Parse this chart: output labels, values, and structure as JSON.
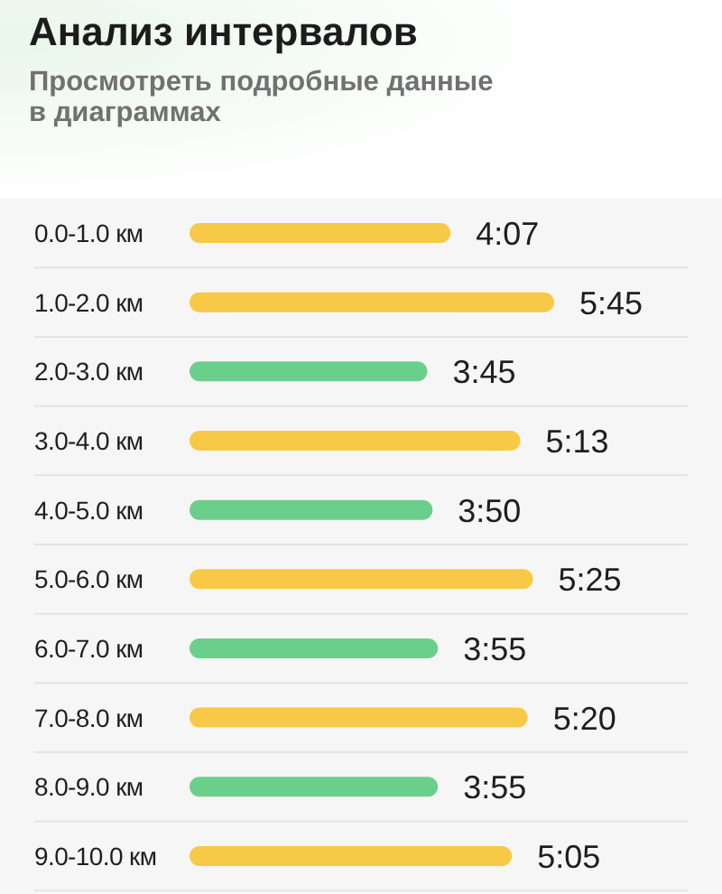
{
  "chart_data": {
    "type": "bar",
    "orientation": "horizontal",
    "title": "Анализ интервалов",
    "subtitle": "Просмотреть подробные данные в диаграммах",
    "categories": [
      "0.0-1.0 км",
      "1.0-2.0 км",
      "2.0-3.0 км",
      "3.0-4.0 км",
      "4.0-5.0 км",
      "5.0-6.0 км",
      "6.0-7.0 км",
      "7.0-8.0 км",
      "8.0-9.0 км",
      "9.0-10.0 км"
    ],
    "values": [
      247,
      345,
      225,
      313,
      230,
      325,
      235,
      320,
      235,
      305
    ],
    "colors": [
      "#f8c946",
      "#f8c946",
      "#6bcf8c",
      "#f8c946",
      "#6bcf8c",
      "#f8c946",
      "#6bcf8c",
      "#f8c946",
      "#6bcf8c",
      "#f8c946"
    ],
    "value_labels": [
      "4:07",
      "5:45",
      "3:45",
      "5:13",
      "3:50",
      "5:25",
      "3:55",
      "5:20",
      "3:55",
      "5:05"
    ]
  }
}
